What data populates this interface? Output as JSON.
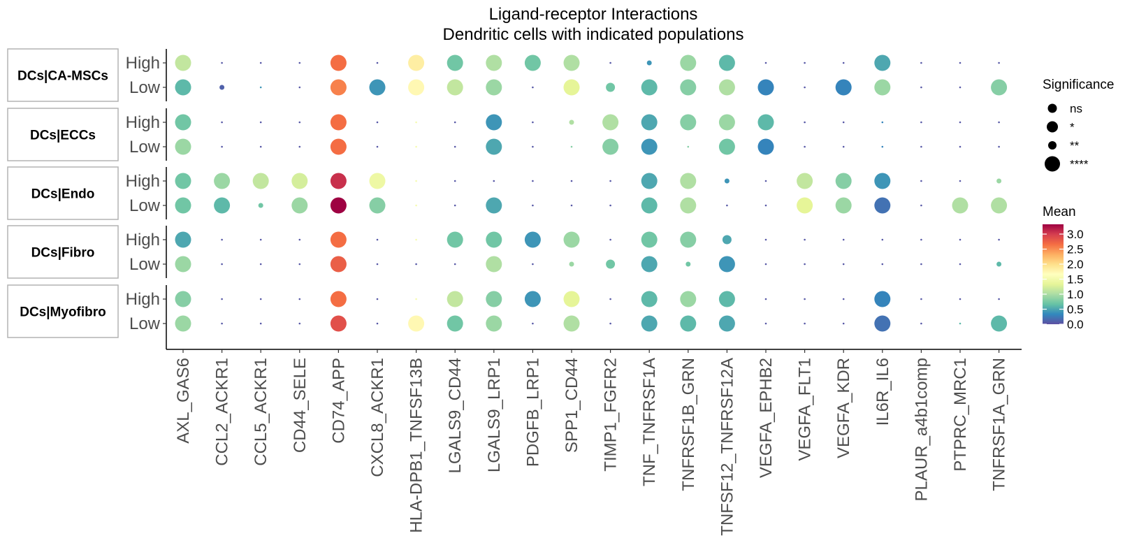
{
  "chart_data": {
    "type": "scatter",
    "title": "Ligand-receptor Interactions",
    "subtitle": "Dendritic cells with indicated populations",
    "facets": [
      "DCs|CA-MSCs",
      "DCs|ECCs",
      "DCs|Endo",
      "DCs|Fibro",
      "DCs|Myofibro"
    ],
    "row_levels": [
      "High",
      "Low"
    ],
    "columns": [
      "AXL_GAS6",
      "CCL2_ACKR1",
      "CCL5_ACKR1",
      "CD44_SELE",
      "CD74_APP",
      "CXCL8_ACKR1",
      "HLA-DPB1_TNFSF13B",
      "LGALS9_CD44",
      "LGALS9_LRP1",
      "PDGFB_LRP1",
      "SPP1_CD44",
      "TIMP1_FGFR2",
      "TNF_TNFRSF1A",
      "TNFRSF1B_GRN",
      "TNFSF12_TNFRSF12A",
      "VEGFA_EPHB2",
      "VEGFA_FLT1",
      "VEGFA_KDR",
      "IL6R_IL6",
      "PLAUR_a4b1comp",
      "PTPRC_MRC1",
      "TNFRSF1A_GRN"
    ],
    "significance_levels": [
      "ns",
      "*",
      "**",
      "****"
    ],
    "color_scale": {
      "title": "Mean",
      "range": [
        0,
        3.25
      ],
      "ticks": [
        0.0,
        0.5,
        1.0,
        1.5,
        2.0,
        2.5,
        3.0
      ],
      "tick_labels": [
        "0.0",
        "0.5",
        "1.0",
        "1.5",
        "2.0",
        "2.5",
        "3.0"
      ],
      "palette": [
        "#5E4FA2",
        "#3288BD",
        "#66C2A5",
        "#ABDDA4",
        "#E6F598",
        "#FFFFBF",
        "#FEE08B",
        "#FDAE61",
        "#F46D43",
        "#D53E4F",
        "#9E0142"
      ]
    },
    "size_legend_title": "Significance",
    "points": {
      "DCs|CA-MSCs": {
        "High": {
          "mean": [
            1.1,
            0.05,
            0.05,
            0.05,
            2.6,
            0.05,
            1.8,
            0.7,
            1.0,
            0.7,
            1.0,
            0.05,
            0.4,
            0.9,
            0.6,
            0.05,
            0.05,
            0.05,
            0.5,
            0.05,
            0.05,
            0.05
          ],
          "sig": [
            3,
            0,
            0,
            0,
            3,
            0,
            3,
            3,
            3,
            3,
            3,
            0,
            1,
            3,
            3,
            0,
            0,
            0,
            3,
            0,
            0,
            0
          ]
        },
        "Low": {
          "mean": [
            0.6,
            0.1,
            0.4,
            0.05,
            2.5,
            0.4,
            1.7,
            1.1,
            0.9,
            0.05,
            1.3,
            0.7,
            0.6,
            0.8,
            1.0,
            0.3,
            0.05,
            0.3,
            0.9,
            0.05,
            0.05,
            0.8
          ],
          "sig": [
            3,
            1,
            0,
            0,
            3,
            3,
            3,
            3,
            3,
            0,
            3,
            2,
            3,
            3,
            3,
            3,
            0,
            3,
            3,
            0,
            0,
            3
          ]
        }
      },
      "DCs|ECCs": {
        "High": {
          "mean": [
            0.7,
            0.05,
            0.05,
            0.05,
            2.6,
            0.05,
            1.5,
            0.05,
            0.4,
            0.05,
            1.0,
            1.0,
            0.5,
            0.8,
            0.9,
            0.6,
            0.05,
            0.05,
            0.3,
            0.05,
            0.05,
            0.05
          ],
          "sig": [
            3,
            0,
            0,
            0,
            3,
            0,
            0,
            0,
            3,
            0,
            1,
            3,
            3,
            3,
            3,
            3,
            0,
            0,
            0,
            0,
            0,
            0
          ]
        },
        "Low": {
          "mean": [
            0.9,
            0.05,
            0.05,
            0.05,
            2.6,
            0.05,
            1.5,
            0.05,
            0.5,
            0.05,
            0.8,
            0.8,
            0.4,
            0.8,
            0.7,
            0.3,
            0.05,
            0.05,
            0.3,
            0.05,
            0.05,
            0.05
          ],
          "sig": [
            3,
            0,
            0,
            0,
            3,
            0,
            0,
            0,
            3,
            0,
            0,
            3,
            3,
            0,
            3,
            3,
            0,
            0,
            0,
            0,
            0,
            0
          ]
        }
      },
      "DCs|Endo": {
        "High": {
          "mean": [
            0.7,
            0.9,
            1.1,
            1.2,
            3.0,
            1.4,
            1.5,
            0.05,
            0.05,
            0.05,
            0.05,
            0.05,
            0.5,
            1.0,
            0.4,
            0.05,
            1.1,
            0.8,
            0.4,
            0.05,
            0.05,
            0.9
          ],
          "sig": [
            3,
            3,
            3,
            3,
            3,
            3,
            0,
            0,
            0,
            0,
            0,
            0,
            3,
            3,
            1,
            0,
            3,
            3,
            3,
            0,
            0,
            1
          ]
        },
        "Low": {
          "mean": [
            0.7,
            0.6,
            0.7,
            0.9,
            3.25,
            0.8,
            1.5,
            0.05,
            0.5,
            0.05,
            0.05,
            0.05,
            0.6,
            1.0,
            0.05,
            0.05,
            1.3,
            0.9,
            0.2,
            0.05,
            1.0,
            1.0
          ],
          "sig": [
            3,
            3,
            1,
            3,
            3,
            3,
            0,
            0,
            3,
            0,
            0,
            0,
            3,
            3,
            0,
            0,
            3,
            3,
            3,
            0,
            3,
            3
          ]
        }
      },
      "DCs|Fibro": {
        "High": {
          "mean": [
            0.5,
            0.05,
            0.05,
            0.05,
            2.6,
            0.05,
            1.5,
            0.7,
            0.7,
            0.4,
            0.9,
            0.05,
            0.7,
            0.8,
            0.5,
            0.05,
            0.05,
            0.05,
            0.05,
            0.05,
            0.05,
            0.05
          ],
          "sig": [
            3,
            0,
            0,
            0,
            3,
            0,
            0,
            3,
            3,
            3,
            3,
            0,
            3,
            3,
            2,
            0,
            0,
            0,
            0,
            0,
            0,
            0
          ]
        },
        "Low": {
          "mean": [
            0.9,
            0.05,
            0.05,
            0.05,
            2.7,
            0.05,
            0.05,
            0.05,
            1.0,
            0.05,
            0.9,
            0.7,
            0.5,
            0.7,
            0.4,
            0.05,
            0.05,
            0.05,
            0.05,
            0.05,
            0.05,
            0.6
          ],
          "sig": [
            3,
            0,
            0,
            0,
            3,
            0,
            0,
            0,
            3,
            0,
            1,
            2,
            3,
            1,
            3,
            0,
            0,
            0,
            0,
            0,
            0,
            1
          ]
        }
      },
      "DCs|Myofibro": {
        "High": {
          "mean": [
            0.8,
            0.05,
            0.05,
            0.05,
            2.6,
            0.05,
            1.5,
            1.1,
            0.8,
            0.4,
            1.3,
            0.05,
            0.6,
            0.9,
            0.6,
            0.05,
            0.05,
            0.05,
            0.3,
            0.05,
            0.05,
            0.05
          ],
          "sig": [
            3,
            0,
            0,
            0,
            3,
            0,
            0,
            3,
            3,
            3,
            3,
            0,
            3,
            3,
            3,
            0,
            0,
            0,
            3,
            0,
            0,
            0
          ]
        },
        "Low": {
          "mean": [
            0.9,
            0.05,
            0.05,
            0.05,
            2.8,
            0.05,
            1.7,
            0.7,
            0.9,
            0.05,
            1.0,
            0.05,
            0.5,
            0.6,
            0.5,
            0.05,
            0.05,
            0.05,
            0.2,
            0.05,
            0.6,
            0.6
          ],
          "sig": [
            3,
            0,
            0,
            0,
            3,
            0,
            3,
            3,
            3,
            0,
            3,
            0,
            3,
            3,
            3,
            0,
            0,
            0,
            3,
            0,
            0,
            3
          ]
        }
      }
    }
  }
}
